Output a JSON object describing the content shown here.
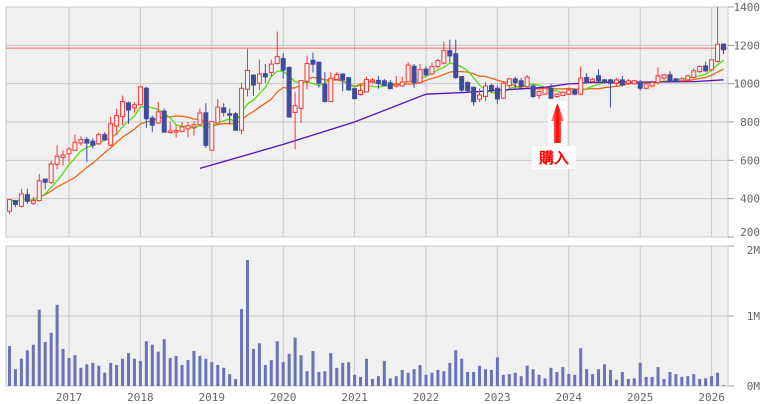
{
  "chart_data": {
    "type": "candlestick",
    "colors": {
      "up": "#ff3333",
      "down": "#3f4c9e",
      "volume": "#6a73b6",
      "ma_short": "#55dd11",
      "ma_mid": "#ee6611",
      "ma_long": "#5511bb",
      "ref_line": "#ff8888",
      "grid": "#c8c8c8",
      "panel": "#f0f0f0",
      "annotation": "#ff0000"
    },
    "price_axis": {
      "min": 200,
      "max": 1400,
      "ticks": [
        "1400",
        "1200",
        "1000",
        "800",
        "600",
        "400",
        "200"
      ]
    },
    "volume_axis": {
      "min": 0,
      "max": 2,
      "unit": "M",
      "ticks": [
        "2M",
        "1M",
        "0M"
      ]
    },
    "x_ticks": [
      {
        "label": "2017",
        "index": 10
      },
      {
        "label": "2018",
        "index": 22
      },
      {
        "label": "2019",
        "index": 34
      },
      {
        "label": "2020",
        "index": 46
      },
      {
        "label": "2021",
        "index": 58
      },
      {
        "label": "2022",
        "index": 70
      },
      {
        "label": "2023",
        "index": 82
      },
      {
        "label": "2024",
        "index": 94
      },
      {
        "label": "2025",
        "index": 106
      },
      {
        "label": "2026",
        "index": 118
      }
    ],
    "reference_line": 1185,
    "annotation": {
      "label": "購入",
      "index": 92
    },
    "ma_short_period": 6,
    "ma_mid_period": 12,
    "ma_long_anchors": [
      [
        32,
        558
      ],
      [
        46,
        683
      ],
      [
        58,
        800
      ],
      [
        70,
        945
      ],
      [
        77,
        955
      ],
      [
        83,
        967
      ],
      [
        90,
        981
      ],
      [
        94,
        999
      ],
      [
        96,
        1002
      ],
      [
        97,
        1006
      ],
      [
        115,
        1011
      ],
      [
        120,
        1020
      ]
    ],
    "ohlc": [
      [
        335,
        398,
        320,
        395
      ],
      [
        390,
        392,
        355,
        370
      ],
      [
        360,
        452,
        355,
        424
      ],
      [
        421,
        452,
        373,
        386
      ],
      [
        376,
        410,
        366,
        390
      ],
      [
        390,
        529,
        385,
        493
      ],
      [
        502,
        505,
        448,
        486
      ],
      [
        484,
        597,
        478,
        581
      ],
      [
        579,
        679,
        553,
        622
      ],
      [
        614,
        652,
        572,
        628
      ],
      [
        634,
        669,
        593,
        659
      ],
      [
        652,
        734,
        648,
        695
      ],
      [
        691,
        726,
        676,
        709
      ],
      [
        709,
        722,
        590,
        690
      ],
      [
        700,
        714,
        662,
        679
      ],
      [
        686,
        745,
        681,
        734
      ],
      [
        734,
        748,
        703,
        707
      ],
      [
        679,
        828,
        674,
        791
      ],
      [
        779,
        869,
        731,
        833
      ],
      [
        828,
        938,
        783,
        907
      ],
      [
        900,
        907,
        790,
        862
      ],
      [
        874,
        903,
        848,
        890
      ],
      [
        890,
        990,
        885,
        983
      ],
      [
        976,
        983,
        769,
        817
      ],
      [
        821,
        833,
        747,
        783
      ],
      [
        795,
        905,
        790,
        853
      ],
      [
        857,
        871,
        745,
        747
      ],
      [
        750,
        802,
        740,
        753
      ],
      [
        748,
        781,
        719,
        755
      ],
      [
        750,
        800,
        748,
        774
      ],
      [
        764,
        800,
        721,
        781
      ],
      [
        774,
        803,
        729,
        786
      ],
      [
        786,
        869,
        783,
        847
      ],
      [
        848,
        898,
        664,
        678
      ],
      [
        653,
        803,
        650,
        803
      ],
      [
        795,
        919,
        791,
        878
      ],
      [
        874,
        898,
        829,
        850
      ],
      [
        843,
        869,
        788,
        838
      ],
      [
        843,
        852,
        755,
        757
      ],
      [
        757,
        1005,
        735,
        976
      ],
      [
        971,
        1183,
        934,
        1069
      ],
      [
        1045,
        1048,
        936,
        993
      ],
      [
        1002,
        1126,
        967,
        1050
      ],
      [
        1052,
        1102,
        1005,
        1036
      ],
      [
        1059,
        1126,
        1036,
        1102
      ],
      [
        1105,
        1272,
        1100,
        1141
      ],
      [
        1131,
        1157,
        1028,
        1071
      ],
      [
        1085,
        1090,
        826,
        826
      ],
      [
        850,
        955,
        657,
        885
      ],
      [
        871,
        1016,
        795,
        1016
      ],
      [
        1012,
        1147,
        971,
        1105
      ],
      [
        1122,
        1162,
        1057,
        1102
      ],
      [
        1112,
        1115,
        979,
        1002
      ],
      [
        998,
        1060,
        902,
        907
      ],
      [
        907,
        1060,
        905,
        1028
      ],
      [
        1022,
        1060,
        1018,
        1048
      ],
      [
        1050,
        1055,
        960,
        1019
      ],
      [
        1031,
        1035,
        967,
        967
      ],
      [
        974,
        976,
        920,
        922
      ],
      [
        943,
        998,
        938,
        964
      ],
      [
        957,
        1036,
        955,
        1022
      ],
      [
        1014,
        1029,
        1002,
        1019
      ],
      [
        1017,
        1040,
        974,
        1002
      ],
      [
        1015,
        1024,
        988,
        991
      ],
      [
        1005,
        1019,
        972,
        974
      ],
      [
        988,
        1040,
        979,
        998
      ],
      [
        988,
        1036,
        985,
        1009
      ],
      [
        1010,
        1112,
        1008,
        1097
      ],
      [
        1091,
        1102,
        979,
        1005
      ],
      [
        1005,
        1102,
        1000,
        1074
      ],
      [
        1076,
        1090,
        1040,
        1046
      ],
      [
        1051,
        1110,
        1045,
        1090
      ],
      [
        1090,
        1130,
        1080,
        1121
      ],
      [
        1107,
        1220,
        1100,
        1172
      ],
      [
        1172,
        1229,
        1110,
        1145
      ],
      [
        1156,
        1230,
        1025,
        1032
      ],
      [
        1037,
        1040,
        950,
        967
      ],
      [
        1006,
        1012,
        958,
        964
      ],
      [
        981,
        985,
        885,
        906
      ],
      [
        919,
        975,
        905,
        941
      ],
      [
        933,
        1010,
        910,
        988
      ],
      [
        990,
        1000,
        950,
        967
      ],
      [
        976,
        990,
        895,
        920
      ],
      [
        924,
        1010,
        920,
        1002
      ],
      [
        990,
        1030,
        975,
        1025
      ],
      [
        1025,
        1035,
        970,
        1006
      ],
      [
        1015,
        1030,
        975,
        985
      ],
      [
        985,
        1045,
        980,
        1034
      ],
      [
        988,
        995,
        925,
        933
      ],
      [
        938,
        965,
        920,
        959
      ],
      [
        945,
        985,
        940,
        976
      ],
      [
        976,
        1000,
        920,
        924
      ],
      [
        933,
        950,
        925,
        945
      ],
      [
        938,
        960,
        935,
        955
      ],
      [
        945,
        975,
        940,
        967
      ],
      [
        967,
        975,
        940,
        945
      ],
      [
        945,
        1090,
        940,
        1029
      ],
      [
        1032,
        1055,
        1000,
        1006
      ],
      [
        1011,
        1030,
        1005,
        1023
      ],
      [
        1041,
        1075,
        1008,
        1015
      ],
      [
        1020,
        1025,
        1000,
        1006
      ],
      [
        1020,
        1025,
        875,
        1002
      ],
      [
        1002,
        1030,
        990,
        1020
      ],
      [
        1020,
        1040,
        985,
        994
      ],
      [
        1002,
        1025,
        995,
        1015
      ],
      [
        999,
        1020,
        995,
        1015
      ],
      [
        1006,
        1020,
        965,
        976
      ],
      [
        976,
        1010,
        970,
        999
      ],
      [
        988,
        1015,
        980,
        1006
      ],
      [
        1006,
        1085,
        995,
        1041
      ],
      [
        1029,
        1050,
        1020,
        1046
      ],
      [
        1046,
        1065,
        1010,
        1015
      ],
      [
        1025,
        1030,
        1005,
        1011
      ],
      [
        1015,
        1035,
        1010,
        1025
      ],
      [
        1020,
        1045,
        1015,
        1041
      ],
      [
        1032,
        1080,
        1025,
        1067
      ],
      [
        1063,
        1095,
        1055,
        1090
      ],
      [
        1093,
        1115,
        1060,
        1067
      ],
      [
        1072,
        1125,
        1070,
        1124
      ],
      [
        1116,
        1400,
        1110,
        1206
      ],
      [
        1206,
        1210,
        1155,
        1177
      ]
    ],
    "volume_m": [
      0.57,
      0.24,
      0.39,
      0.51,
      0.59,
      1.09,
      0.63,
      0.76,
      1.16,
      0.53,
      0.4,
      0.44,
      0.26,
      0.31,
      0.33,
      0.29,
      0.19,
      0.33,
      0.3,
      0.39,
      0.47,
      0.39,
      0.36,
      0.64,
      0.59,
      0.49,
      0.67,
      0.4,
      0.43,
      0.3,
      0.37,
      0.5,
      0.43,
      0.39,
      0.34,
      0.3,
      0.26,
      0.17,
      0.1,
      1.1,
      1.8,
      0.53,
      0.61,
      0.3,
      0.37,
      0.64,
      0.34,
      0.46,
      0.69,
      0.44,
      0.21,
      0.5,
      0.2,
      0.21,
      0.47,
      0.26,
      0.33,
      0.34,
      0.16,
      0.13,
      0.39,
      0.1,
      0.14,
      0.36,
      0.11,
      0.14,
      0.23,
      0.19,
      0.24,
      0.3,
      0.16,
      0.19,
      0.23,
      0.21,
      0.33,
      0.51,
      0.39,
      0.2,
      0.2,
      0.29,
      0.24,
      0.23,
      0.41,
      0.16,
      0.17,
      0.19,
      0.14,
      0.29,
      0.24,
      0.16,
      0.11,
      0.26,
      0.2,
      0.27,
      0.17,
      0.16,
      0.54,
      0.24,
      0.17,
      0.24,
      0.31,
      0.23,
      0.09,
      0.2,
      0.1,
      0.11,
      0.33,
      0.13,
      0.13,
      0.27,
      0.1,
      0.2,
      0.17,
      0.13,
      0.14,
      0.17,
      0.1,
      0.11,
      0.14,
      0.19,
      0.01
    ]
  }
}
